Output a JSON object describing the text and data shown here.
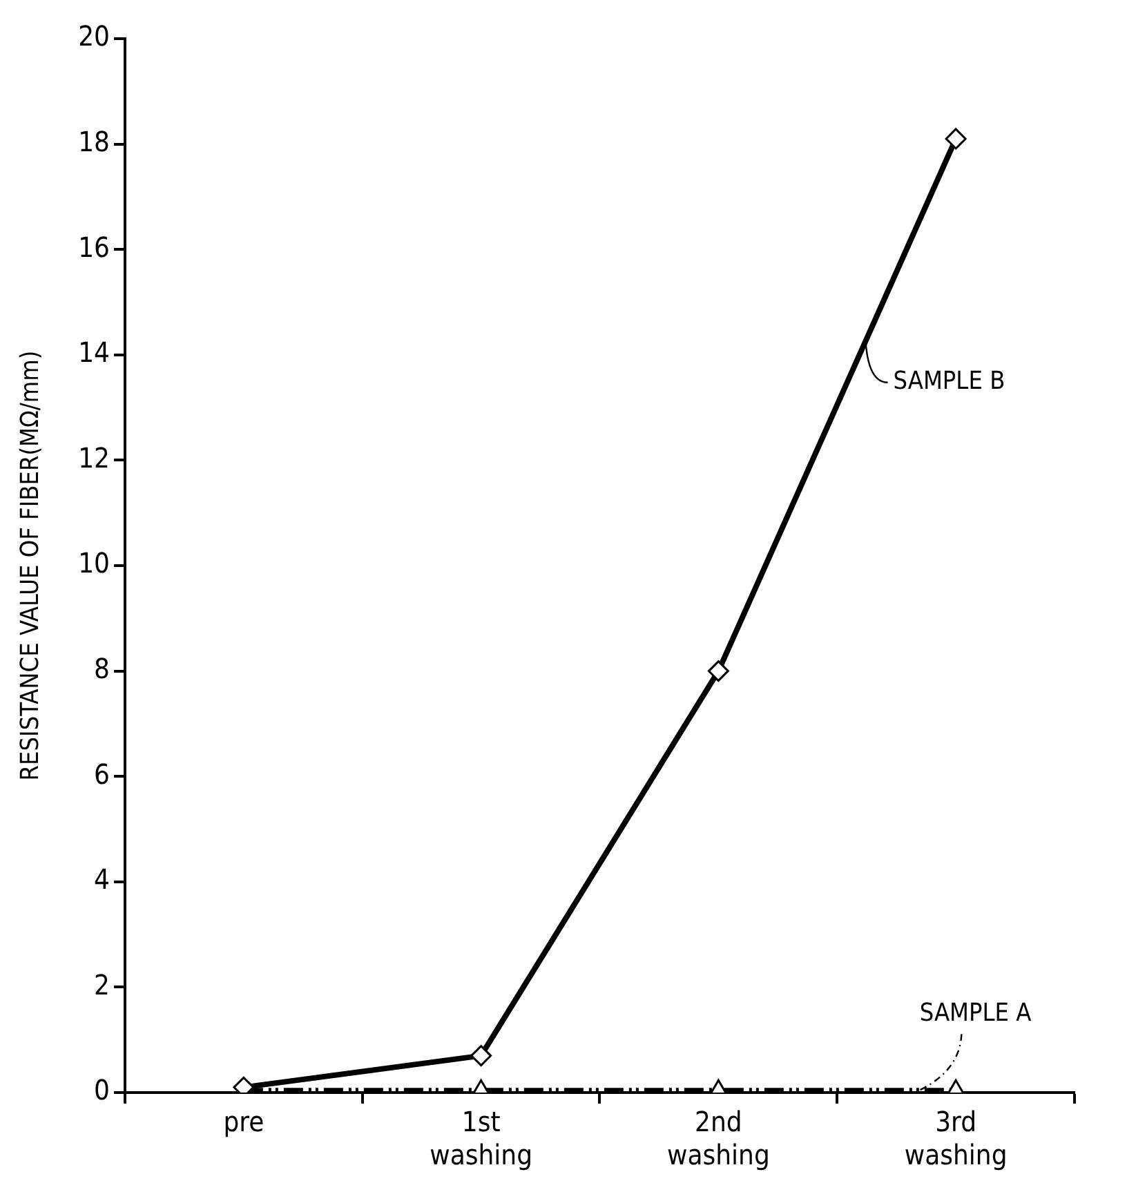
{
  "chart_data": {
    "type": "line",
    "ylabel": "RESISTANCE VALUE OF FIBER(MΩ/mm)",
    "categories": [
      "pre",
      "1st\nwashing",
      "2nd\nwashing",
      "3rd\nwashing"
    ],
    "series": [
      {
        "name": "SAMPLE B",
        "color": "#000000",
        "values": [
          0.1,
          0.7,
          8.0,
          18.1
        ],
        "marker": "diamond",
        "line_style": "solid"
      },
      {
        "name": "SAMPLE A",
        "color": "#000000",
        "values": [
          0.05,
          0.05,
          0.05,
          0.05
        ],
        "marker": "triangle",
        "line_style": "dashed"
      }
    ],
    "ylim": [
      0,
      20
    ],
    "yticks": [
      0,
      2,
      4,
      6,
      8,
      10,
      12,
      14,
      16,
      18,
      20
    ],
    "grid": false,
    "legend": false
  }
}
